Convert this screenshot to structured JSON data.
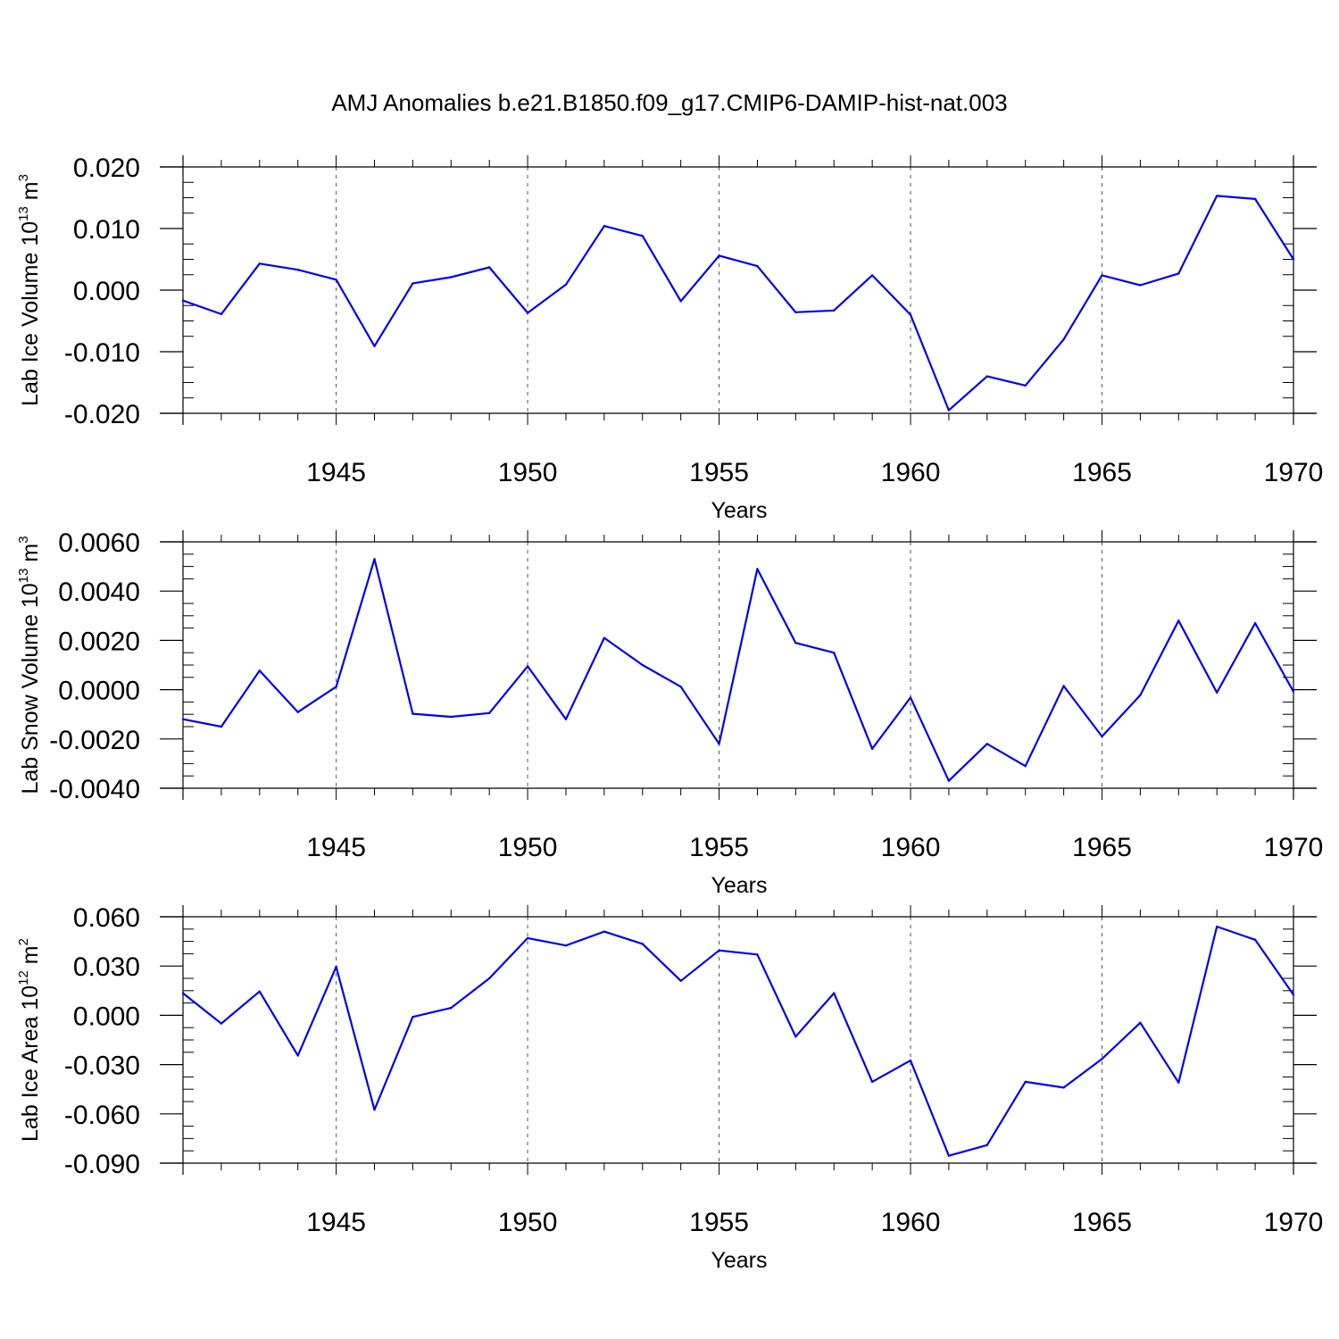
{
  "title": "AMJ Anomalies b.e21.B1850.f09_g17.CMIP6-DAMIP-hist-nat.003",
  "colors": {
    "line": "#0000ee",
    "axis": "#000000",
    "grid": "#555555"
  },
  "chart_data": [
    {
      "type": "line",
      "id": "ice-volume",
      "ylabel": {
        "main": "Lab Ice Volume 10",
        "exp": "13",
        "unit": " m",
        "unit_exp": "3"
      },
      "xlabel": "Years",
      "xlim": [
        1941,
        1970
      ],
      "ylim": [
        -0.02,
        0.02
      ],
      "yticks": [
        -0.02,
        -0.01,
        0.0,
        0.01,
        0.02
      ],
      "yticklabels": [
        "-0.020",
        "-0.010",
        "0.000",
        "0.010",
        "0.020"
      ],
      "xticks": [
        1945,
        1950,
        1955,
        1960,
        1965,
        1970
      ],
      "xticklabels": [
        "1945",
        "1950",
        "1955",
        "1960",
        "1965",
        "1970"
      ],
      "x": [
        1941,
        1942,
        1943,
        1944,
        1945,
        1946,
        1947,
        1948,
        1949,
        1950,
        1951,
        1952,
        1953,
        1954,
        1955,
        1956,
        1957,
        1958,
        1959,
        1960,
        1961,
        1962,
        1963,
        1964,
        1965,
        1966,
        1967,
        1968,
        1969,
        1970
      ],
      "values": [
        -0.0017,
        -0.0039,
        0.0043,
        0.0033,
        0.0017,
        -0.0091,
        0.0011,
        0.0021,
        0.0037,
        -0.0037,
        0.0009,
        0.0104,
        0.0088,
        -0.0018,
        0.0056,
        0.0039,
        -0.0036,
        -0.0033,
        0.0024,
        -0.004,
        -0.0195,
        -0.014,
        -0.0155,
        -0.008,
        0.0024,
        0.0008,
        0.0027,
        0.0153,
        0.0148,
        0.005
      ]
    },
    {
      "type": "line",
      "id": "snow-volume",
      "ylabel": {
        "main": "Lab Snow Volume 10",
        "exp": "13",
        "unit": " m",
        "unit_exp": "3"
      },
      "xlabel": "Years",
      "xlim": [
        1941,
        1970
      ],
      "ylim": [
        -0.004,
        0.006
      ],
      "yticks": [
        -0.004,
        -0.002,
        0.0,
        0.002,
        0.004,
        0.006
      ],
      "yticklabels": [
        "-0.0040",
        "-0.0020",
        "0.0000",
        "0.0020",
        "0.0040",
        "0.0060"
      ],
      "xticks": [
        1945,
        1950,
        1955,
        1960,
        1965,
        1970
      ],
      "xticklabels": [
        "1945",
        "1950",
        "1955",
        "1960",
        "1965",
        "1970"
      ],
      "x": [
        1941,
        1942,
        1943,
        1944,
        1945,
        1946,
        1947,
        1948,
        1949,
        1950,
        1951,
        1952,
        1953,
        1954,
        1955,
        1956,
        1957,
        1958,
        1959,
        1960,
        1961,
        1962,
        1963,
        1964,
        1965,
        1966,
        1967,
        1968,
        1969,
        1970
      ],
      "values": [
        -0.0012,
        -0.0015,
        0.00077,
        -0.00091,
        0.00012,
        0.0053,
        -0.00098,
        -0.0011,
        -0.00095,
        0.00095,
        -0.0012,
        0.0021,
        0.001,
        0.00012,
        -0.0022,
        0.0049,
        0.0019,
        0.0015,
        -0.0024,
        -0.00032,
        -0.0037,
        -0.0022,
        -0.0031,
        0.00015,
        -0.0019,
        -0.00022,
        0.0028,
        -0.00012,
        0.0027,
        -8e-05
      ]
    },
    {
      "type": "line",
      "id": "ice-area",
      "ylabel": {
        "main": "Lab Ice Area 10",
        "exp": "12",
        "unit": " m",
        "unit_exp": "2"
      },
      "xlabel": "Years",
      "xlim": [
        1941,
        1970
      ],
      "ylim": [
        -0.09,
        0.06
      ],
      "yticks": [
        -0.09,
        -0.06,
        -0.03,
        0.0,
        0.03,
        0.06
      ],
      "yticklabels": [
        "-0.090",
        "-0.060",
        "-0.030",
        "0.000",
        "0.030",
        "0.060"
      ],
      "xticks": [
        1945,
        1950,
        1955,
        1960,
        1965,
        1970
      ],
      "xticklabels": [
        "1945",
        "1950",
        "1955",
        "1960",
        "1965",
        "1970"
      ],
      "x": [
        1941,
        1942,
        1943,
        1944,
        1945,
        1946,
        1947,
        1948,
        1949,
        1950,
        1951,
        1952,
        1953,
        1954,
        1955,
        1956,
        1957,
        1958,
        1959,
        1960,
        1961,
        1962,
        1963,
        1964,
        1965,
        1966,
        1967,
        1968,
        1969,
        1970
      ],
      "values": [
        0.0135,
        -0.005,
        0.0145,
        -0.0245,
        0.0295,
        -0.0575,
        -0.001,
        0.0045,
        0.0225,
        0.047,
        0.0425,
        0.051,
        0.0435,
        0.021,
        0.0395,
        0.037,
        -0.013,
        0.0135,
        -0.0405,
        -0.0275,
        -0.0855,
        -0.079,
        -0.0405,
        -0.044,
        -0.0265,
        -0.0045,
        -0.041,
        0.054,
        0.046,
        0.0125
      ]
    }
  ]
}
